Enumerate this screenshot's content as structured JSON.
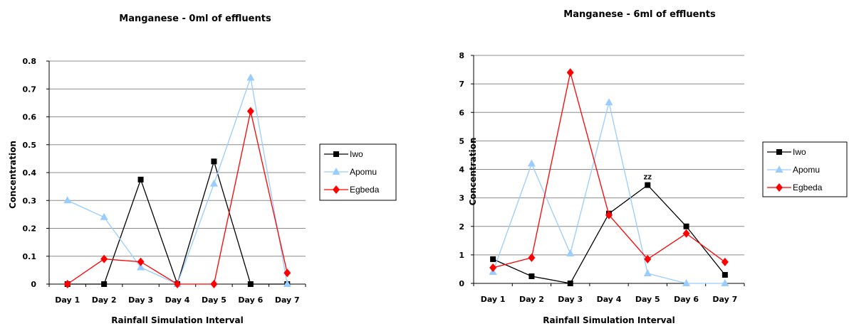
{
  "chart_data": [
    {
      "type": "line",
      "title": "Manganese -  0ml of effluents",
      "xlabel": "Rainfall Simulation Interval",
      "ylabel": "Concentration",
      "categories": [
        "Day 1",
        "Day 2",
        "Day 3",
        "Day 4",
        "Day 5",
        "Day 6",
        "Day 7"
      ],
      "ylim": [
        0,
        0.8
      ],
      "yticks": [
        "0",
        "0.1",
        "0.2",
        "0.3",
        "0.4",
        "0.5",
        "0.6",
        "0.7",
        "0.8"
      ],
      "grid": true,
      "legend": "right",
      "series": [
        {
          "name": "Iwo",
          "color": "#000000",
          "marker": "square",
          "values": [
            0,
            0,
            0.375,
            0,
            0.44,
            0,
            0
          ]
        },
        {
          "name": "Apomu",
          "color": "#99ccff",
          "marker": "triangle",
          "values": [
            0.3,
            0.24,
            0.06,
            0,
            0.36,
            0.74,
            0
          ]
        },
        {
          "name": "Egbeda",
          "color": "#ff0000",
          "marker": "diamond",
          "values": [
            0,
            0.09,
            0.08,
            0,
            0,
            0.62,
            0.04
          ]
        }
      ]
    },
    {
      "type": "line",
      "title": "Manganese - 6ml of effluents",
      "xlabel": "Rainfall Simulation Interval",
      "ylabel": "Concentration",
      "categories": [
        "Day 1",
        "Day 2",
        "Day 3",
        "Day 4",
        "Day 5",
        "Day 6",
        "Day 7"
      ],
      "ylim": [
        0,
        8
      ],
      "yticks": [
        "0",
        "1",
        "2",
        "3",
        "4",
        "5",
        "6",
        "7",
        "8"
      ],
      "grid": true,
      "legend": "right",
      "annotation": "ZZ",
      "series": [
        {
          "name": "Iwo",
          "color": "#000000",
          "marker": "square",
          "values": [
            0.85,
            0.25,
            0,
            2.45,
            3.45,
            2,
            0.3
          ]
        },
        {
          "name": "Apomu",
          "color": "#99ccff",
          "marker": "triangle",
          "values": [
            0.4,
            4.2,
            1.05,
            6.35,
            0.35,
            0,
            0
          ]
        },
        {
          "name": "Egbeda",
          "color": "#ff0000",
          "marker": "diamond",
          "values": [
            0.55,
            0.9,
            7.4,
            2.4,
            0.85,
            1.75,
            0.75
          ]
        }
      ]
    }
  ]
}
